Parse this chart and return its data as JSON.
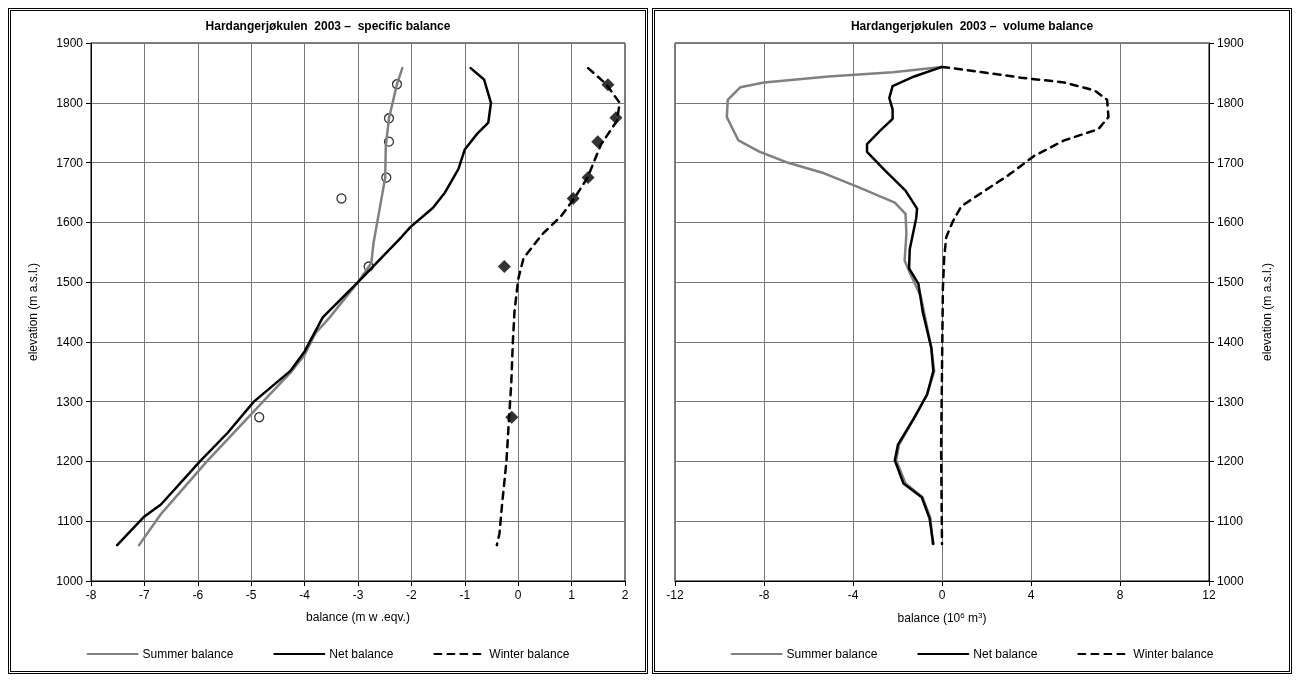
{
  "chart_data": [
    {
      "type": "line",
      "title": "Hardangerjøkulen  2003 –  specific balance",
      "xlabel": "balance (m w .eqv.)",
      "ylabel": "elevation (m a.s.l.)",
      "xlim": [
        -8,
        2
      ],
      "xticks": [
        -8,
        -7,
        -6,
        -5,
        -4,
        -3,
        -2,
        -1,
        0,
        1,
        2
      ],
      "ylim": [
        1000,
        1900
      ],
      "yticks": [
        1000,
        1100,
        1200,
        1300,
        1400,
        1500,
        1600,
        1700,
        1800,
        1900
      ],
      "grid": true,
      "legend": "bottom",
      "marker": "none",
      "series": [
        {
          "name": "Summer balance",
          "color": "#808080",
          "line_style": "solid",
          "x": [
            -2.17,
            -2.27,
            -2.42,
            -2.48,
            -2.49,
            -2.58,
            -2.71,
            -2.75,
            -3.0,
            -3.53,
            -3.8,
            -4.0,
            -4.26,
            -4.78,
            -5.83,
            -6.69,
            -7.1
          ],
          "values": [
            1858,
            1831,
            1774,
            1728,
            1675,
            1630,
            1565,
            1532,
            1500,
            1441,
            1414,
            1378,
            1349,
            1300,
            1200,
            1112,
            1060
          ]
        },
        {
          "name": "Net balance",
          "color": "#000000",
          "line_style": "solid",
          "x": [
            -0.89,
            -0.64,
            -0.51,
            -0.56,
            -0.77,
            -1.0,
            -1.12,
            -1.37,
            -1.6,
            -2.02,
            -2.19,
            -3.0,
            -3.66,
            -4.0,
            -4.26,
            -4.95,
            -5.44,
            -5.96,
            -6.69,
            -7.0,
            -7.51
          ],
          "values": [
            1858,
            1839,
            1800,
            1767,
            1748,
            1722,
            1689,
            1650,
            1624,
            1592,
            1575,
            1500,
            1441,
            1384,
            1352,
            1300,
            1248,
            1200,
            1128,
            1108,
            1060
          ]
        },
        {
          "name": "Winter balance",
          "color": "#000000",
          "line_style": "dashed",
          "x": [
            1.31,
            1.64,
            1.9,
            1.85,
            1.55,
            1.3,
            1.05,
            0.8,
            0.45,
            0.1,
            0.0,
            -0.07,
            -0.1,
            -0.13,
            -0.18,
            -0.22,
            -0.3,
            -0.35,
            -0.4
          ],
          "values": [
            1858,
            1832,
            1800,
            1770,
            1730,
            1675,
            1640,
            1610,
            1580,
            1540,
            1505,
            1450,
            1400,
            1330,
            1260,
            1200,
            1130,
            1080,
            1060
          ]
        },
        {
          "type": "scatter",
          "marker": "circle",
          "color": "#000000",
          "x": [
            -2.27,
            -2.42,
            -2.42,
            -2.47,
            -3.31,
            -2.8,
            -4.85
          ],
          "values": [
            1831,
            1774,
            1735,
            1675,
            1640,
            1526,
            1274
          ]
        },
        {
          "type": "scatter",
          "marker": "diamond",
          "color": "#000000",
          "x": [
            1.68,
            1.83,
            1.49,
            1.31,
            1.03,
            -0.26,
            -0.12
          ],
          "values": [
            1830,
            1775,
            1735,
            1675,
            1640,
            1526,
            1274
          ]
        }
      ]
    },
    {
      "type": "line",
      "title": "Hardangerjøkulen  2003 –  volume balance",
      "xlabel": "balance (10$^{6}$ m$^{3}$)",
      "y2label": "elevation (m a.s.l.)",
      "xlim": [
        -12,
        12
      ],
      "xticks": [
        -12,
        -8,
        -4,
        0,
        4,
        8,
        12
      ],
      "y2lim": [
        1000,
        1900
      ],
      "y2ticks": [
        1000,
        1100,
        1200,
        1300,
        1400,
        1500,
        1600,
        1700,
        1800,
        1900
      ],
      "grid": true,
      "legend": "bottom",
      "marker": "none",
      "series": [
        {
          "name": "Summer balance",
          "axis": "y2",
          "color": "#808080",
          "line_style": "solid",
          "x": [
            0,
            -2.22,
            -5.1,
            -8.0,
            -9.06,
            -9.63,
            -9.67,
            -9.15,
            -8.19,
            -7.03,
            -5.3,
            -3.76,
            -2.12,
            -1.64,
            -1.6,
            -1.68,
            -1.45,
            -0.96,
            -0.48,
            -0.35,
            -0.67,
            -1.25,
            -1.93,
            -2.06,
            -1.64,
            -0.87,
            -0.52,
            -0.42
          ],
          "values": [
            1860,
            1851,
            1844,
            1834,
            1826,
            1805,
            1776,
            1737,
            1718,
            1701,
            1682,
            1659,
            1633,
            1614,
            1581,
            1536,
            1516,
            1477,
            1390,
            1351,
            1312,
            1273,
            1228,
            1202,
            1163,
            1140,
            1105,
            1062
          ]
        },
        {
          "name": "Net balance",
          "axis": "y2",
          "color": "#000000",
          "line_style": "solid",
          "x": [
            0,
            -1.25,
            -2.22,
            -2.37,
            -2.22,
            -2.22,
            -2.79,
            -3.37,
            -3.37,
            -2.6,
            -1.64,
            -1.12,
            -1.16,
            -1.45,
            -1.48,
            -1.06,
            -0.87,
            -0.48,
            -0.39,
            -0.67,
            -1.25,
            -1.98,
            -2.12,
            -1.73,
            -0.91,
            -0.56,
            -0.39
          ],
          "values": [
            1860,
            1844,
            1828,
            1808,
            1789,
            1773,
            1753,
            1731,
            1718,
            1688,
            1653,
            1623,
            1607,
            1555,
            1523,
            1497,
            1451,
            1390,
            1351,
            1312,
            1273,
            1228,
            1202,
            1163,
            1140,
            1105,
            1062
          ]
        },
        {
          "name": "Winter balance",
          "axis": "y2",
          "color": "#000000",
          "line_style": "dashed",
          "x": [
            0,
            1.83,
            3.56,
            5.49,
            6.84,
            7.42,
            7.48,
            7.03,
            5.49,
            4.14,
            2.99,
            1.64,
            0.87,
            0.48,
            0.19,
            0.1,
            0.04,
            0,
            -0.04,
            0
          ],
          "values": [
            1860,
            1851,
            1842,
            1834,
            1821,
            1805,
            1776,
            1756,
            1737,
            1711,
            1679,
            1646,
            1627,
            1601,
            1575,
            1542,
            1490,
            1351,
            1221,
            1062
          ]
        }
      ]
    }
  ]
}
